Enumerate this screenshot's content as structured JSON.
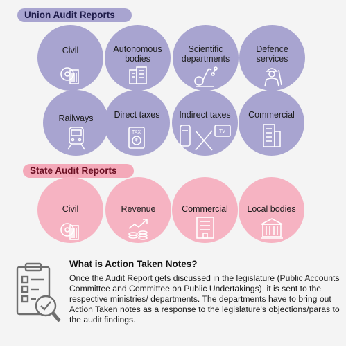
{
  "union": {
    "heading": "Union Audit Reports",
    "items": [
      {
        "label": "Civil",
        "icon": "gear-building-icon"
      },
      {
        "label": "Autonomous\nbodies",
        "icon": "office-building-icon"
      },
      {
        "label": "Scientific\ndepartments",
        "icon": "microscope-icon"
      },
      {
        "label": "Defence\nservices",
        "icon": "soldier-icon"
      },
      {
        "label": "Railways",
        "icon": "train-icon"
      },
      {
        "label": "Direct taxes",
        "icon": "tax-document-icon"
      },
      {
        "label": "Indirect taxes",
        "icon": "goods-tv-icon"
      },
      {
        "label": "Commercial",
        "icon": "tower-building-icon"
      }
    ]
  },
  "state": {
    "heading": "State Audit Reports",
    "items": [
      {
        "label": "Civil",
        "icon": "gear-building-icon"
      },
      {
        "label": "Revenue",
        "icon": "coins-growth-icon"
      },
      {
        "label": "Commercial",
        "icon": "office-building-icon"
      },
      {
        "label": "Local bodies",
        "icon": "municipal-building-icon"
      }
    ]
  },
  "notes": {
    "title": "What is Action Taken Notes?",
    "body": "Once the Audit Report gets discussed in the legislature (Public Accounts Committee and Committee on Public Undertakings), it is sent to the respective ministries/ departments. The departments have to bring out Action Taken notes as a response to the legislature's objections/paras to the audit findings.",
    "icon": "checklist-magnifier-icon"
  },
  "colors": {
    "union": "#a8a4d0",
    "state": "#f6b3c2",
    "icon_stroke": "#ffffff"
  }
}
